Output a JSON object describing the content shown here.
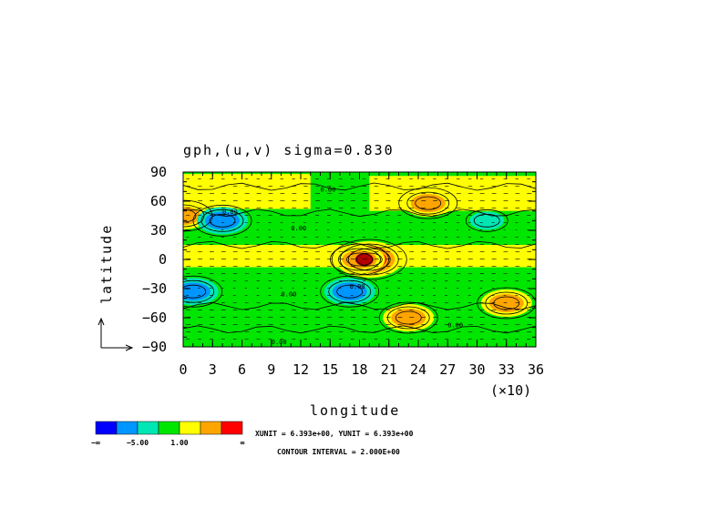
{
  "chart_data": {
    "type": "heatmap",
    "title": "gph,(u,v) sigma=0.830",
    "xlabel": "longitude",
    "ylabel": "latitude",
    "x_multiplier": "(×10)",
    "xlim": [
      0,
      36
    ],
    "ylim": [
      -90,
      90
    ],
    "xticks": [
      "0",
      "3",
      "6",
      "9",
      "12",
      "15",
      "18",
      "21",
      "24",
      "27",
      "30",
      "33",
      "36"
    ],
    "yticks": [
      "90",
      "60",
      "30",
      "0",
      "−30",
      "−60",
      "−90"
    ],
    "levels": {
      "colors": [
        "#0000ff",
        "#0096ff",
        "#00e6b4",
        "#00e600",
        "#ffff00",
        "#ffa500",
        "#ff0000"
      ],
      "labels": [
        "−∞",
        "−5.00",
        "1.00",
        "∞"
      ]
    },
    "contour_labels": [
      "0.00",
      "0.00",
      "0.00",
      "0.00",
      "0.00",
      "0.00",
      "0.00"
    ],
    "unit_text": "XUNIT = 6.393e+00, YUNIT = 6.393e+00",
    "contour_interval": "CONTOUR INTERVAL = 2.000E+00",
    "features": [
      {
        "kind": "high",
        "lon": 19,
        "lat": 0,
        "level": 6
      },
      {
        "kind": "high",
        "lon": 18,
        "lat": 0,
        "level": 5
      },
      {
        "kind": "high",
        "lon": 23,
        "lat": -60,
        "level": 5
      },
      {
        "kind": "high",
        "lon": 33,
        "lat": -45,
        "level": 5
      },
      {
        "kind": "high",
        "lon": 25,
        "lat": 58,
        "level": 5
      },
      {
        "kind": "high",
        "lon": 0,
        "lat": 45,
        "level": 5
      },
      {
        "kind": "low",
        "lon": 4,
        "lat": 40,
        "level": 1
      },
      {
        "kind": "low",
        "lon": 1,
        "lat": -33,
        "level": 1
      },
      {
        "kind": "low",
        "lon": 17,
        "lat": -33,
        "level": 1
      },
      {
        "kind": "low",
        "lon": 31,
        "lat": 40,
        "level": 2
      }
    ]
  }
}
